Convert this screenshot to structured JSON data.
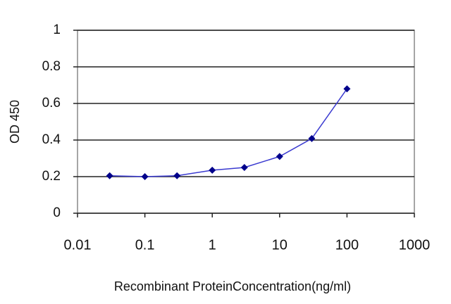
{
  "chart_data": {
    "type": "line",
    "x_label": "Recombinant ProteinConcentration(ng/ml)",
    "y_label": "OD 450",
    "x": [
      0.03,
      0.1,
      0.3,
      1,
      3,
      10,
      30,
      100
    ],
    "series": [
      {
        "name": "OD 450",
        "color": "#00008b",
        "line_color": "#3a3ad0",
        "values": [
          0.205,
          0.2,
          0.205,
          0.235,
          0.25,
          0.31,
          0.408,
          0.68
        ]
      }
    ],
    "xlim": [
      0.01,
      1000
    ],
    "xticks": [
      0.01,
      0.1,
      1,
      10,
      100,
      1000
    ],
    "x_log": true,
    "ylim": [
      0,
      1
    ],
    "yticks": [
      0,
      0.2,
      0.4,
      0.6,
      0.8,
      1
    ],
    "grid": true
  }
}
